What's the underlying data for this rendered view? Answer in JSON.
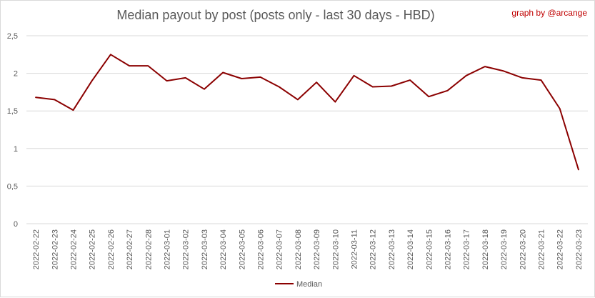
{
  "colors": {
    "series": "#8b0000",
    "grid": "#d9d9d9",
    "credit": "#c00000",
    "text": "#595959"
  },
  "chart_data": {
    "type": "line",
    "title": "Median payout by post (posts only - last 30 days - HBD)",
    "credit": "graph by @arcange",
    "xlabel": "",
    "ylabel": "",
    "ylim": [
      0,
      2.5
    ],
    "y_ticks": [
      "0",
      "0,5",
      "1",
      "1,5",
      "2",
      "2,5"
    ],
    "y_tick_values": [
      0,
      0.5,
      1,
      1.5,
      2,
      2.5
    ],
    "grid": true,
    "legend_position": "bottom",
    "categories": [
      "2022-02-22",
      "2022-02-23",
      "2022-02-24",
      "2022-02-25",
      "2022-02-26",
      "2022-02-27",
      "2022-02-28",
      "2022-03-01",
      "2022-03-02",
      "2022-03-03",
      "2022-03-04",
      "2022-03-05",
      "2022-03-06",
      "2022-03-07",
      "2022-03-08",
      "2022-03-09",
      "2022-03-10",
      "2022-03-11",
      "2022-03-12",
      "2022-03-13",
      "2022-03-14",
      "2022-03-15",
      "2022-03-16",
      "2022-03-17",
      "2022-03-18",
      "2022-03-19",
      "2022-03-20",
      "2022-03-21",
      "2022-03-22",
      "2022-03-23"
    ],
    "series": [
      {
        "name": "Median",
        "values": [
          1.68,
          1.65,
          1.51,
          1.9,
          2.25,
          2.1,
          2.1,
          1.9,
          1.94,
          1.79,
          2.01,
          1.93,
          1.95,
          1.82,
          1.65,
          1.88,
          1.62,
          1.97,
          1.82,
          1.83,
          1.91,
          1.69,
          1.77,
          1.97,
          2.09,
          2.03,
          1.94,
          1.91,
          1.53,
          0.72
        ]
      }
    ]
  }
}
